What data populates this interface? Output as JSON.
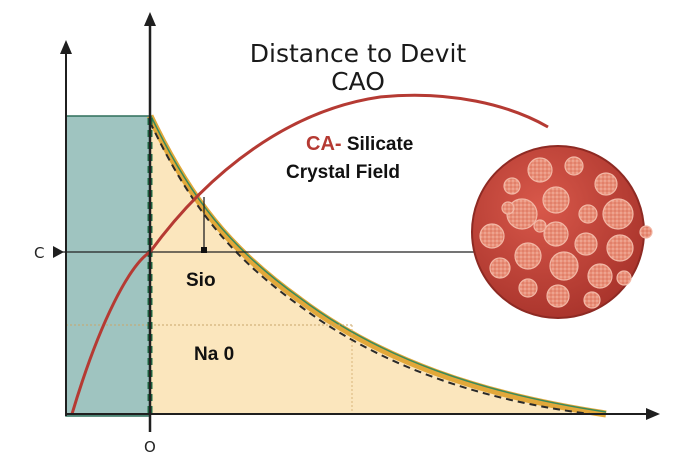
{
  "title_line1": "Distance to Devit",
  "title_line2": "CAO",
  "field_label_prefix": "CA-",
  "field_label_suffix": " Silicate",
  "field_label_line2": "Crystal Field",
  "region_upper_label": "Sio",
  "region_lower_label": "Na 0",
  "y_axis_marker_label": "C",
  "x_axis_origin_label": "O",
  "colors": {
    "teal_region": "#9fc4c0",
    "cream_region": "#fbe6bd",
    "red_curve": "#b53a33",
    "orange_band": "#e2a83a",
    "green_edge": "#2f7f55",
    "crystal_fill": "#c8473c",
    "grain_fill": "#e88a74",
    "axis": "#1f1f1f"
  }
}
